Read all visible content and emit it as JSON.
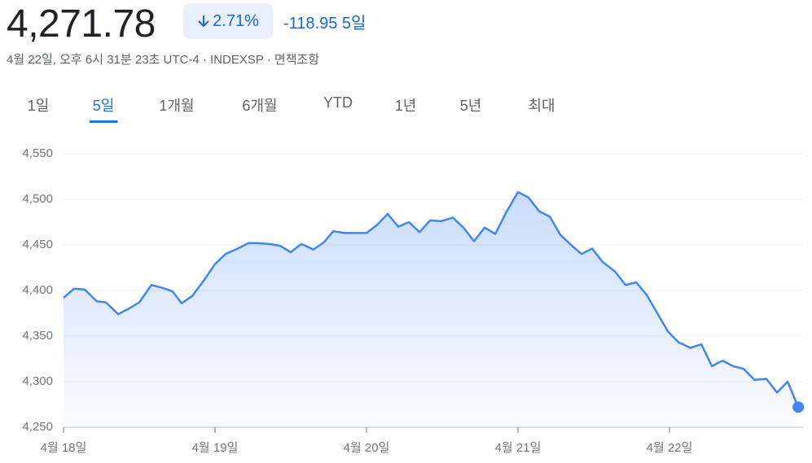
{
  "header": {
    "price": "4,271.78",
    "change_pct": "2.71%",
    "change": "-118.95",
    "period": "5일",
    "subtitle": "4월 22일, 오후 6시 31분 23초 UTC-4 · INDEXSP · ",
    "disclaimer": "면책조항"
  },
  "tabs": [
    "1일",
    "5일",
    "1개월",
    "6개월",
    "YTD",
    "1년",
    "5년",
    "최대"
  ],
  "selected_tab": 1,
  "chart_data": {
    "type": "line",
    "color": "#4285f4",
    "grid": true,
    "x": [
      0,
      0.07,
      0.14,
      0.22,
      0.28,
      0.36,
      0.43,
      0.5,
      0.58,
      0.65,
      0.72,
      0.78,
      0.85,
      0.93,
      1.0,
      1.07,
      1.15,
      1.22,
      1.28,
      1.36,
      1.43,
      1.5,
      1.57,
      1.65,
      1.72,
      1.78,
      1.86,
      1.93,
      2.0,
      2.07,
      2.14,
      2.21,
      2.28,
      2.35,
      2.42,
      2.49,
      2.57,
      2.64,
      2.71,
      2.78,
      2.85,
      2.92,
      3.0,
      3.07,
      3.14,
      3.21,
      3.28,
      3.35,
      3.42,
      3.49,
      3.56,
      3.64,
      3.71,
      3.78,
      3.85,
      3.92,
      3.99,
      4.06,
      4.14,
      4.21,
      4.28,
      4.35,
      4.42,
      4.49,
      4.56,
      4.64,
      4.71,
      4.78,
      4.85
    ],
    "values": [
      4392,
      4402,
      4401,
      4388,
      4387,
      4374,
      4380,
      4387,
      4406,
      4403,
      4399,
      4386,
      4394,
      4412,
      4429,
      4440,
      4446,
      4452,
      4452,
      4451,
      4449,
      4442,
      4451,
      4445,
      4453,
      4465,
      4463,
      4463,
      4463,
      4472,
      4484,
      4470,
      4475,
      4464,
      4477,
      4476,
      4480,
      4469,
      4454,
      4469,
      4462,
      4485,
      4508,
      4502,
      4487,
      4481,
      4461,
      4450,
      4440,
      4446,
      4431,
      4421,
      4406,
      4409,
      4395,
      4375,
      4355,
      4343,
      4337,
      4341,
      4317,
      4323,
      4317,
      4314,
      4302,
      4303,
      4288,
      4300,
      4272
    ],
    "xlim": [
      0,
      4.88
    ],
    "xticks": [
      {
        "value": 0,
        "label": "4월 18일"
      },
      {
        "value": 1,
        "label": "4월 19일"
      },
      {
        "value": 2,
        "label": "4월 20일"
      },
      {
        "value": 3,
        "label": "4월 21일"
      },
      {
        "value": 4,
        "label": "4월 22일"
      }
    ],
    "ylim": [
      4250,
      4550
    ],
    "yticks": [
      {
        "value": 4250,
        "label": "4,250"
      },
      {
        "value": 4300,
        "label": "4,300"
      },
      {
        "value": 4350,
        "label": "4,350"
      },
      {
        "value": 4400,
        "label": "4,400"
      },
      {
        "value": 4450,
        "label": "4,450"
      },
      {
        "value": 4500,
        "label": "4,500"
      },
      {
        "value": 4550,
        "label": "4,550"
      }
    ]
  }
}
